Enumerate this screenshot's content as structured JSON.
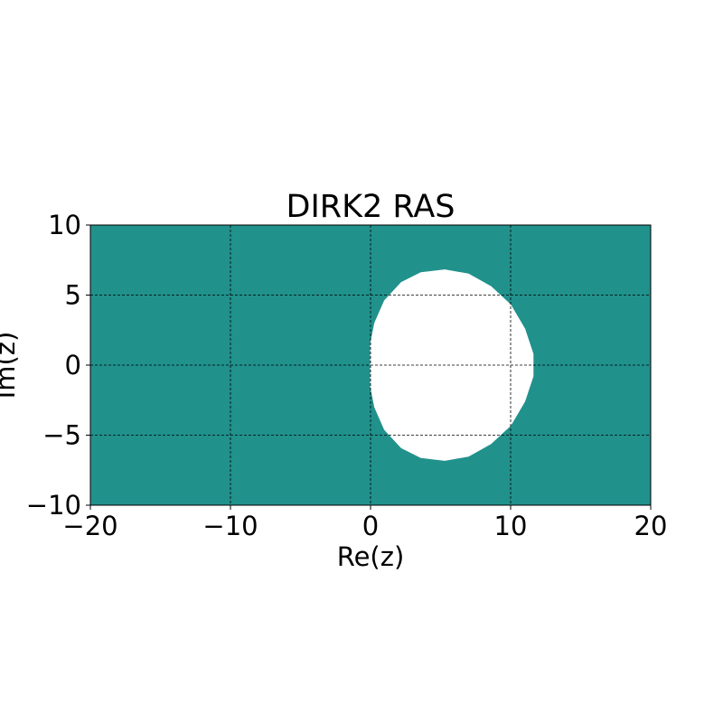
{
  "chart_data": {
    "type": "region",
    "title": "DIRK2 RAS",
    "xlabel": "Re(z)",
    "ylabel": "Im(z)",
    "xlim": [
      -20,
      20
    ],
    "ylim": [
      -10,
      10
    ],
    "xticks": [
      -20,
      -10,
      0,
      10,
      20
    ],
    "yticks": [
      -10,
      -5,
      0,
      5,
      10
    ],
    "xtick_labels": [
      "−20",
      "−10",
      "0",
      "10",
      "20"
    ],
    "ytick_labels": [
      "−10",
      "−5",
      "0",
      "5",
      "10"
    ],
    "grid": true,
    "fill_color": "#21918c",
    "hole_color": "#ffffff",
    "unshaded_region_boundary": [
      [
        0,
        0
      ],
      [
        0,
        1.5
      ],
      [
        0.3,
        3.0
      ],
      [
        1.0,
        4.6
      ],
      [
        2.2,
        5.9
      ],
      [
        3.6,
        6.6
      ],
      [
        5.3,
        6.8
      ],
      [
        7.0,
        6.5
      ],
      [
        8.6,
        5.6
      ],
      [
        10.0,
        4.3
      ],
      [
        11.0,
        2.6
      ],
      [
        11.6,
        0.8
      ],
      [
        11.6,
        -0.8
      ],
      [
        11.0,
        -2.6
      ],
      [
        10.0,
        -4.3
      ],
      [
        8.6,
        -5.6
      ],
      [
        7.0,
        -6.5
      ],
      [
        5.3,
        -6.8
      ],
      [
        3.6,
        -6.6
      ],
      [
        2.2,
        -5.9
      ],
      [
        1.0,
        -4.6
      ],
      [
        0.3,
        -3.0
      ],
      [
        0,
        -1.5
      ]
    ]
  }
}
